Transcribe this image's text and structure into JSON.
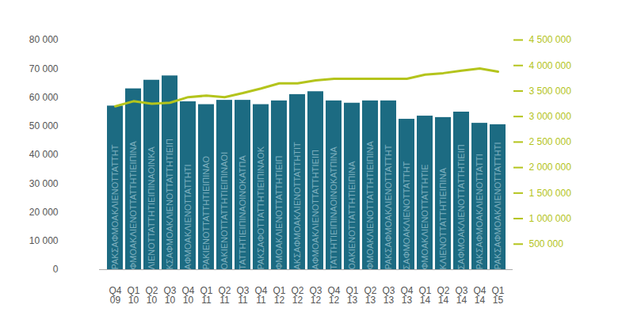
{
  "chart_data": {
    "type": "bar",
    "categories": [
      "Q4\n09",
      "Q1\n10",
      "Q2\n10",
      "Q3\n10",
      "Q4\n10",
      "Q1\n11",
      "Q2\n11",
      "Q3\n11",
      "Q4\n11",
      "Q1\n12",
      "Q2\n12",
      "Q3\n12",
      "Q4\n12",
      "Q1\n13",
      "Q2\n13",
      "Q3\n13",
      "Q4\n13",
      "Q1\n14",
      "Q2\n14",
      "Q3\n14",
      "Q4\n14",
      "Q1\n15"
    ],
    "series": [
      {
        "type": "bar",
        "color": "#1c6b82",
        "values": [
          57000,
          63000,
          66000,
          67500,
          58500,
          57500,
          59000,
          59000,
          57500,
          58800,
          61000,
          62000,
          58800,
          58000,
          58800,
          58800,
          52400,
          53500,
          53000,
          54900,
          51000,
          50500
        ]
      },
      {
        "type": "line",
        "color": "#b4c41c",
        "axis": "y2",
        "values": [
          3200000,
          3300000,
          3250000,
          3270000,
          3380000,
          3410000,
          3380000,
          3460000,
          3550000,
          3650000,
          3650000,
          3710000,
          3740000,
          3740000,
          3740000,
          3740000,
          3740000,
          3820000,
          3850000,
          3900000,
          3940000,
          3880000
        ]
      }
    ],
    "annotations": [
      "PAKΣAΦMOAKΛIENOTTATTHT",
      "ΦMOAKΛIENOTTATTHTIEIΠINA",
      "ΛIENOTTATTHTIEIΠINAOINKA",
      "KΣAΦMOAKΛIENOTTATTHTIEIΠ",
      "AΦMOAKΛIENOTTATTHTI",
      "PAKIENOTTATTHTIEIΠINAO",
      "OAKIENOTTATTHTIEIΠINAOI",
      "TATTHTIEIΠINAOINOKATΠA",
      "PAKΣAΦOTTATTHTIEIΠINAOK",
      "ΦMOAKΛIENOTTATTHTIEIΠ",
      "AKΣAΦMOAKΛIENOTTATTHTIT",
      "AΦMOAKΛIENOTTATTHTIEIΠ",
      "TATTHTIEIΠINAOINOKATΠINA",
      "OAKIENOTTATTHTIEIΠINA",
      "ΦMOAKΛIENOTTATTHTIEIΠINA",
      "PAKΣAΦMOAKΛIENOTTATTHT",
      "ΣAΦMOAKΛIENOTTATTHT",
      "ΦMOAKΛIENOTTATTHTIE",
      "KΛIENOTTATTHTIEIΠINA",
      "ΣAΦMOAKΛIENOTTATTHTIEIΠ",
      "PAKΣAΦMOAKΛIENOTTATTI",
      "PAKΣAΦMOAKΛIENOTTATTHTI"
    ],
    "ylim": [
      0,
      80000
    ],
    "yticks": [
      0,
      {
        "value": 10000,
        "label": "10 000"
      },
      {
        "value": 20000,
        "label": "20 000"
      },
      {
        "value": 30000,
        "label": "30 000"
      },
      {
        "value": 40000,
        "label": "40 000"
      },
      {
        "value": 50000,
        "label": "50 000"
      },
      {
        "value": 60000,
        "label": "60 000"
      },
      {
        "value": 70000,
        "label": "70 000"
      },
      {
        "value": 80000,
        "label": "80 000"
      }
    ],
    "y2lim": [
      0,
      4500000
    ],
    "y2ticks": [
      {
        "value": 500000,
        "label": "500 000"
      },
      {
        "value": 1000000,
        "label": "1 000 000"
      },
      {
        "value": 1500000,
        "label": "1 500 000"
      },
      {
        "value": 2000000,
        "label": "2 000 000"
      },
      {
        "value": 2500000,
        "label": "2 500 000"
      },
      {
        "value": 3000000,
        "label": "3 000 000"
      },
      {
        "value": 3500000,
        "label": "3 500 000"
      },
      {
        "value": 4000000,
        "label": "4 000 000"
      },
      {
        "value": 4500000,
        "label": "4 500 000"
      }
    ],
    "grid": false
  }
}
